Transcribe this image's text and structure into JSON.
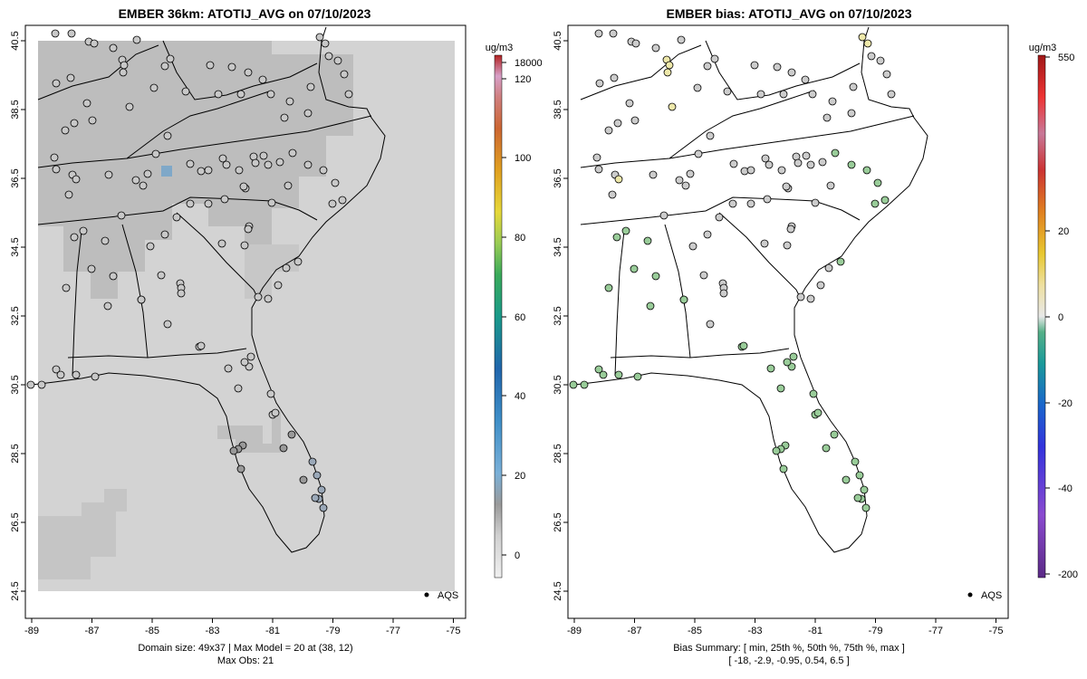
{
  "left_panel": {
    "title": "EMBER 36km: ATOTIJ_AVG on 07/10/2023",
    "legend_label": "AQS",
    "colorbar": {
      "unit": "ug/m3",
      "labels": [
        "18000",
        "120",
        "100",
        "80",
        "60",
        "40",
        "20",
        "0"
      ]
    },
    "footer_line1": "Domain size: 49x37 | Max Model = 20 at (38, 12)",
    "footer_line2": "Max Obs: 21"
  },
  "right_panel": {
    "title": "EMBER bias: ATOTIJ_AVG on 07/10/2023",
    "legend_label": "AQS",
    "colorbar": {
      "unit": "ug/m3",
      "labels": [
        "550",
        "20",
        "0",
        "-20",
        "-40",
        "-200"
      ]
    },
    "footer_line1": "Bias Summary: [ min, 25th %, 50th %, 75th %, max ]",
    "footer_line2": "[ -18,   -2.9,   -0.95,   0.54,   6.5 ]"
  },
  "axes": {
    "x_ticks": [
      "-89",
      "-87",
      "-85",
      "-83",
      "-81",
      "-79",
      "-77",
      "-75"
    ],
    "y_ticks": [
      "40.5",
      "38.5",
      "36.5",
      "34.5",
      "32.5",
      "30.5",
      "28.5",
      "26.5",
      "24.5"
    ]
  },
  "colors": {
    "grid_fill": "#d3d3d3",
    "cell_dark": "#b9b9b9",
    "cell_mid": "#c4c4c4",
    "site_default": "#cccccc",
    "site_green": "#99cc99",
    "site_yellow": "#eee8aa"
  }
}
